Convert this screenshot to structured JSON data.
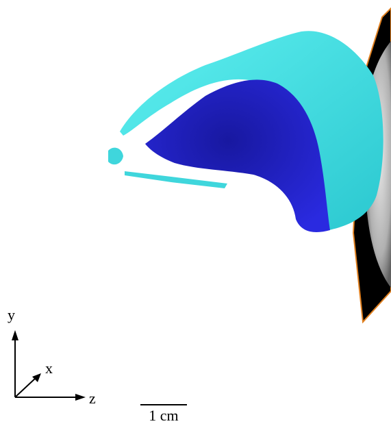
{
  "axes": {
    "y": "y",
    "x": "x",
    "z": "z"
  },
  "scale_bar": {
    "label": "1 cm"
  }
}
